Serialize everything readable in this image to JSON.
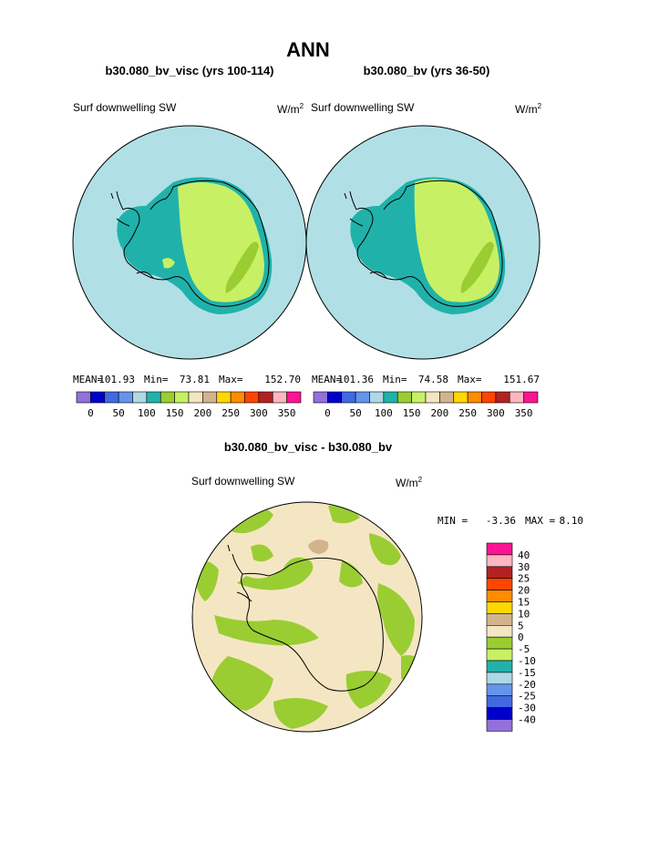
{
  "page": {
    "title": "ANN",
    "difference_title": "b30.080_bv_visc - b30.080_bv"
  },
  "panels": [
    {
      "case_title": "b30.080_bv_visc (yrs 100-114)",
      "variable": "Surf downwelling SW",
      "units_base": "W/m",
      "units_exp": "2",
      "stats": {
        "mean_label": "MEAN=",
        "mean": "101.93",
        "min_label": "Min=",
        "min": "73.81",
        "max_label": "Max=",
        "max": "152.70"
      }
    },
    {
      "case_title": "b30.080_bv (yrs 36-50)",
      "variable": "Surf downwelling SW",
      "units_base": "W/m",
      "units_exp": "2",
      "stats": {
        "mean_label": "MEAN=",
        "mean": "101.36",
        "min_label": "Min=",
        "min": "74.58",
        "max_label": "Max=",
        "max": "151.67"
      }
    }
  ],
  "difference": {
    "variable": "Surf downwelling SW",
    "units_base": "W/m",
    "units_exp": "2",
    "stats": {
      "min_label": "MIN =",
      "min": "-3.36",
      "max_label": "MAX =",
      "max": "8.10"
    }
  },
  "chart_data": [
    {
      "type": "heatmap",
      "title": "b30.080_bv_visc (yrs 100-114)",
      "projection": "south polar stereographic",
      "colorbar": {
        "orientation": "horizontal",
        "colors": [
          "#9370db",
          "#0000cd",
          "#4169e1",
          "#6495ed",
          "#add8e6",
          "#20b2aa",
          "#9acd32",
          "#c8f064",
          "#f5e6c3",
          "#d2b48c",
          "#ffd700",
          "#ff8c00",
          "#ff4500",
          "#b22222",
          "#ffb6c1",
          "#ff1493"
        ],
        "tick_labels": [
          "0",
          "50",
          "100",
          "150",
          "200",
          "250",
          "300",
          "350"
        ]
      }
    },
    {
      "type": "heatmap",
      "title": "b30.080_bv (yrs 36-50)",
      "projection": "south polar stereographic",
      "colorbar": {
        "orientation": "horizontal",
        "colors": [
          "#9370db",
          "#0000cd",
          "#4169e1",
          "#6495ed",
          "#add8e6",
          "#20b2aa",
          "#9acd32",
          "#c8f064",
          "#f5e6c3",
          "#d2b48c",
          "#ffd700",
          "#ff8c00",
          "#ff4500",
          "#b22222",
          "#ffb6c1",
          "#ff1493"
        ],
        "tick_labels": [
          "0",
          "50",
          "100",
          "150",
          "200",
          "250",
          "300",
          "350"
        ]
      }
    },
    {
      "type": "heatmap",
      "title": "b30.080_bv_visc - b30.080_bv",
      "projection": "south polar stereographic",
      "colorbar": {
        "orientation": "vertical",
        "colors_top_to_bottom": [
          "#ff1493",
          "#ffb6c1",
          "#b22222",
          "#ff4500",
          "#ff8c00",
          "#ffd700",
          "#d2b48c",
          "#f5e6c3",
          "#9acd32",
          "#c8f064",
          "#20b2aa",
          "#add8e6",
          "#6495ed",
          "#4169e1",
          "#0000cd",
          "#9370db"
        ],
        "tick_labels_top_to_bottom": [
          "40",
          "30",
          "25",
          "20",
          "15",
          "10",
          "5",
          "0",
          "-5",
          "-10",
          "-15",
          "-20",
          "-25",
          "-30",
          "-40"
        ]
      }
    }
  ],
  "colors": {
    "ocean": "#b0e0e6",
    "coast_teal": "#20b2aa",
    "plateau": "#c8f064",
    "interior": "#9acd32",
    "diff_base": "#f5e6c3",
    "diff_neg": "#9acd32",
    "diff_pos": "#d2b48c"
  }
}
